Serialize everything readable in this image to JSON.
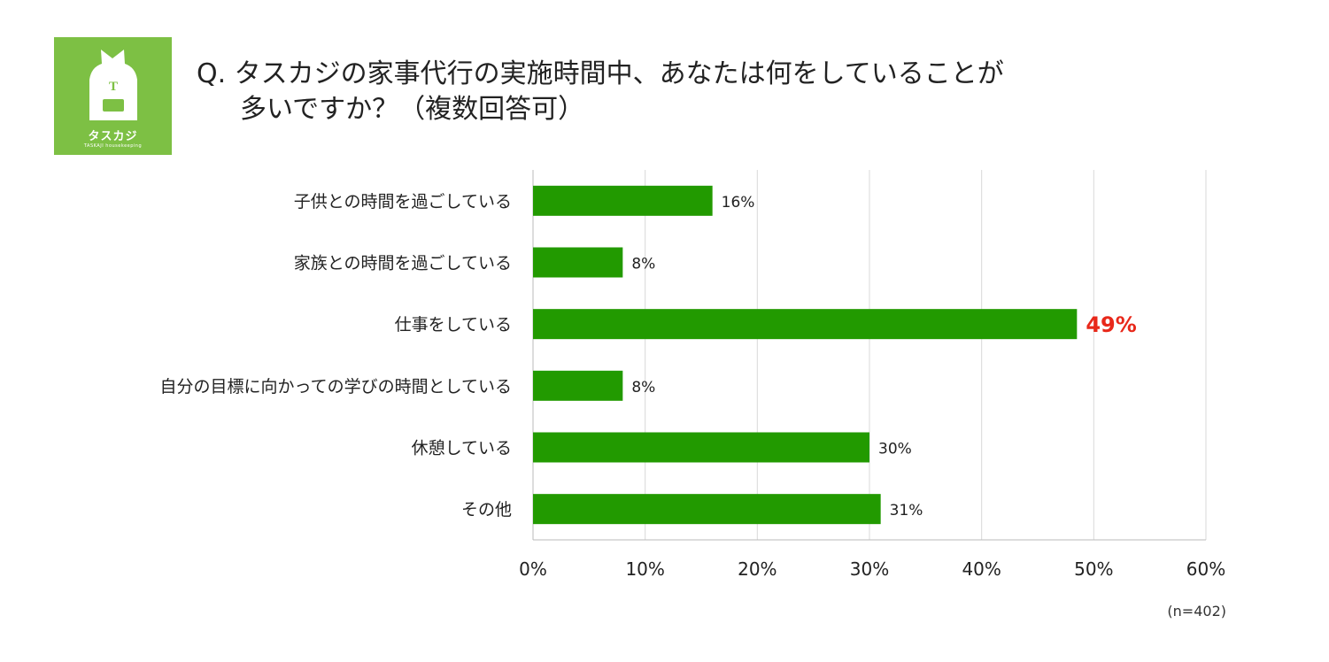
{
  "brand": {
    "logo_text": "タスカジ",
    "logo_sub": "TASKAJI housekeeping",
    "logo_letter": "T",
    "logo_color": "#7dc044"
  },
  "question": {
    "line1": "Q. タスカジの家事代行の実施時間中、あなたは何をしていることが",
    "line2": "多いですか？（複数回答可）"
  },
  "chart_data": {
    "type": "bar",
    "orientation": "horizontal",
    "categories": [
      "子供との時間を過ごしている",
      "家族との時間を過ごしている",
      "仕事をしている",
      "自分の目標に向かっての学びの時間としている",
      "休憩している",
      "その他"
    ],
    "values": [
      16,
      8,
      48.5,
      8,
      30,
      31
    ],
    "value_labels": [
      "16%",
      "8%",
      "49%",
      "8%",
      "30%",
      "31%"
    ],
    "highlight_index": 2,
    "x_ticks": [
      "0%",
      "10%",
      "20%",
      "30%",
      "40%",
      "50%",
      "60%"
    ],
    "xlim": [
      0,
      60
    ],
    "grid": true,
    "bar_color": "#229a00",
    "highlight_color": "#e8281a"
  },
  "note": "(n=402)"
}
